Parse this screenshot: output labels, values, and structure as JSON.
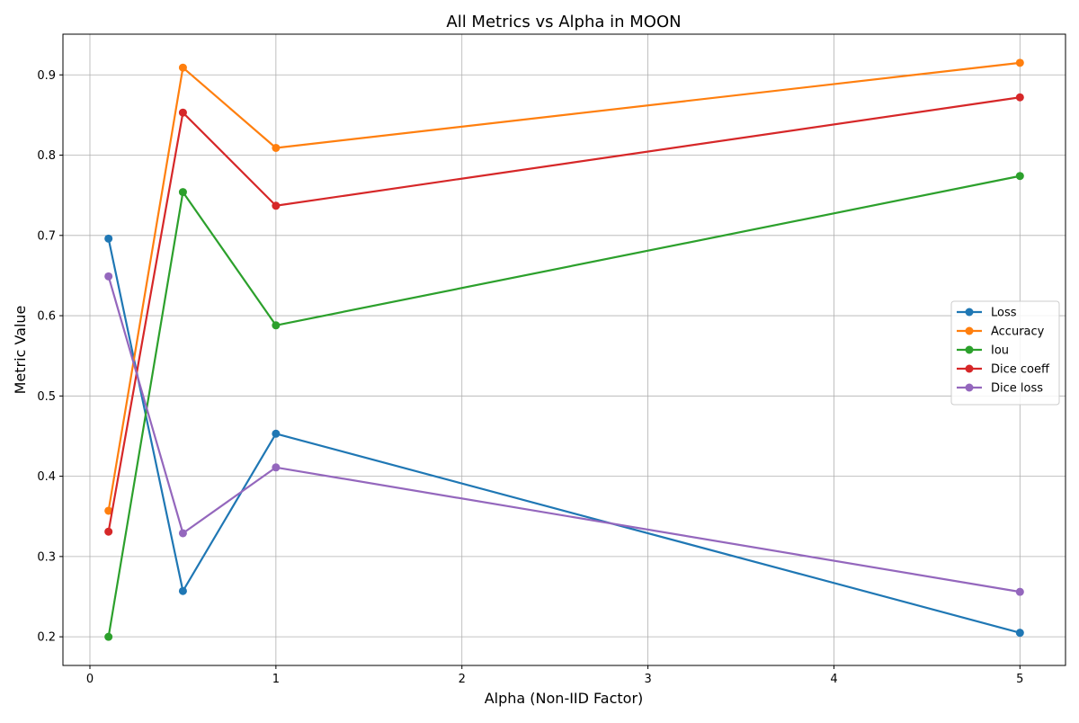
{
  "chart_data": {
    "type": "line",
    "title": "All Metrics vs Alpha in MOON",
    "xlabel": "Alpha (Non-IID Factor)",
    "ylabel": "Metric Value",
    "x": [
      0.1,
      0.5,
      1,
      5
    ],
    "xlim": [
      -0.145,
      5.245
    ],
    "ylim": [
      0.1643,
      0.9507
    ],
    "xticks": [
      0,
      1,
      2,
      3,
      4,
      5
    ],
    "xtick_labels": [
      "0",
      "1",
      "2",
      "3",
      "4",
      "5"
    ],
    "yticks": [
      0.2,
      0.3,
      0.4,
      0.5,
      0.6,
      0.7,
      0.8,
      0.9
    ],
    "ytick_labels": [
      "0.2",
      "0.3",
      "0.4",
      "0.5",
      "0.6",
      "0.7",
      "0.8",
      "0.9"
    ],
    "grid": true,
    "legend_position": "center-right",
    "series": [
      {
        "name": "Loss",
        "color": "#1f77b4",
        "values": [
          0.696,
          0.257,
          0.453,
          0.205
        ]
      },
      {
        "name": "Accuracy",
        "color": "#ff7f0e",
        "values": [
          0.357,
          0.909,
          0.809,
          0.915
        ]
      },
      {
        "name": "Iou",
        "color": "#2ca02c",
        "values": [
          0.2,
          0.754,
          0.588,
          0.774
        ]
      },
      {
        "name": "Dice coeff",
        "color": "#d62728",
        "values": [
          0.331,
          0.853,
          0.737,
          0.872
        ]
      },
      {
        "name": "Dice loss",
        "color": "#9467bd",
        "values": [
          0.649,
          0.329,
          0.411,
          0.256
        ]
      }
    ]
  }
}
